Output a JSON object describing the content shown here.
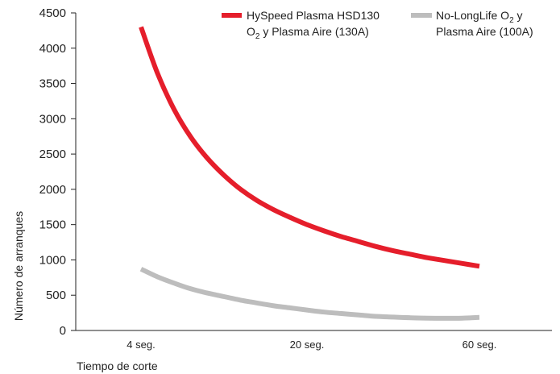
{
  "chart_data": {
    "type": "line",
    "title": "",
    "xlabel": "Tiempo de corte",
    "ylabel": "Número de arranques",
    "categories": [
      "4 seg.",
      "20 seg.",
      "60 seg."
    ],
    "ylim": [
      0,
      4500
    ],
    "yticks": [
      0,
      500,
      1000,
      1500,
      2000,
      2500,
      3000,
      3500,
      4000,
      4500
    ],
    "grid": false,
    "legend_position": "top-right",
    "x": [
      0,
      0.1,
      0.2,
      0.3,
      0.4,
      0.5,
      0.6,
      0.7,
      0.8,
      0.9,
      1.0,
      1.1,
      1.2,
      1.3,
      1.4,
      1.5,
      1.6,
      1.7,
      1.8,
      1.9,
      2.0
    ],
    "series": [
      {
        "legend_line1": "HySpeed Plasma HSD130",
        "legend_line2_prefix": "O",
        "legend_line2_sub": "2",
        "legend_line2_suffix": " y Plasma Aire (130A)",
        "color": "#e51e2b",
        "values": [
          4300,
          3640,
          3130,
          2740,
          2440,
          2200,
          2000,
          1840,
          1710,
          1600,
          1500,
          1410,
          1330,
          1260,
          1190,
          1130,
          1080,
          1030,
          990,
          950,
          910
        ]
      },
      {
        "legend_line1_prefix": "No-LongLife O",
        "legend_line1_sub": "2",
        "legend_line1_suffix": " y",
        "legend_line2": "Plasma Aire (100A)",
        "color": "#bdbdbd",
        "values": [
          870,
          760,
          670,
          590,
          530,
          480,
          430,
          390,
          350,
          320,
          290,
          260,
          240,
          220,
          200,
          190,
          180,
          175,
          172,
          175,
          185
        ]
      }
    ]
  }
}
